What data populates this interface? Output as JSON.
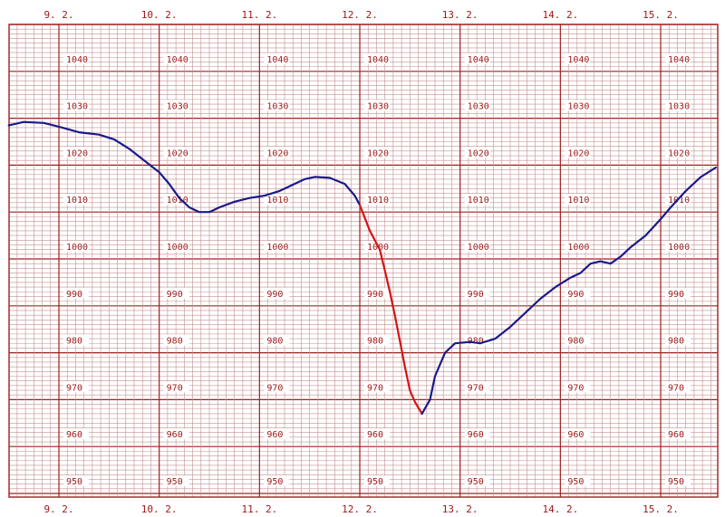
{
  "chart_data": {
    "type": "line",
    "title": "",
    "xlabel": "",
    "ylabel": "",
    "x_unit": "days",
    "x_ticks": [
      "9. 2.",
      "10. 2.",
      "11. 2.",
      "12. 2.",
      "13. 2.",
      "14. 2.",
      "15. 2."
    ],
    "y_tick_labels": [
      "1040",
      "1030",
      "1020",
      "1010",
      "1000",
      "990",
      "980",
      "970",
      "960",
      "950"
    ],
    "xlim": [
      8.5,
      15.55
    ],
    "ylim": [
      946,
      1052
    ],
    "grid": true,
    "colors": {
      "background": "#ffffff",
      "grid_minor": "#c49090",
      "grid_major": "#a02020",
      "label": "#a01818",
      "series_normal": "#1a1a8a",
      "series_drop": "#d41414"
    },
    "series": [
      {
        "color": "#1a1a8a",
        "points": [
          [
            8.5,
            1028.5
          ],
          [
            8.65,
            1029.2
          ],
          [
            8.85,
            1029.0
          ],
          [
            9.0,
            1028.2
          ],
          [
            9.2,
            1027.0
          ],
          [
            9.4,
            1026.5
          ],
          [
            9.55,
            1025.5
          ],
          [
            9.7,
            1023.5
          ],
          [
            9.85,
            1021.0
          ],
          [
            10.0,
            1018.5
          ],
          [
            10.1,
            1016.0
          ],
          [
            10.2,
            1013.0
          ],
          [
            10.3,
            1011.0
          ],
          [
            10.4,
            1010.0
          ],
          [
            10.5,
            1010.0
          ],
          [
            10.6,
            1011.0
          ],
          [
            10.75,
            1012.2
          ],
          [
            10.9,
            1013.0
          ],
          [
            11.05,
            1013.5
          ],
          [
            11.2,
            1014.5
          ],
          [
            11.3,
            1015.5
          ],
          [
            11.45,
            1017.0
          ],
          [
            11.55,
            1017.5
          ],
          [
            11.7,
            1017.3
          ],
          [
            11.85,
            1016.0
          ],
          [
            11.95,
            1013.5
          ],
          [
            12.0,
            1011.5
          ]
        ]
      },
      {
        "color": "#d41414",
        "points": [
          [
            12.0,
            1011.5
          ],
          [
            12.1,
            1006.0
          ],
          [
            12.2,
            1002.0
          ],
          [
            12.25,
            997.5
          ],
          [
            12.3,
            993.0
          ],
          [
            12.35,
            988.0
          ],
          [
            12.4,
            982.5
          ],
          [
            12.45,
            977.0
          ],
          [
            12.5,
            972.0
          ],
          [
            12.55,
            969.5
          ],
          [
            12.62,
            967.0
          ]
        ]
      },
      {
        "color": "#1a1a8a",
        "points": [
          [
            12.62,
            967.0
          ],
          [
            12.7,
            970.0
          ],
          [
            12.75,
            975.0
          ],
          [
            12.85,
            980.0
          ],
          [
            12.95,
            982.0
          ],
          [
            13.1,
            982.3
          ],
          [
            13.2,
            982.0
          ],
          [
            13.35,
            983.0
          ],
          [
            13.5,
            985.5
          ],
          [
            13.65,
            988.5
          ],
          [
            13.8,
            991.5
          ],
          [
            13.95,
            994.0
          ],
          [
            14.1,
            996.0
          ],
          [
            14.2,
            997.0
          ],
          [
            14.3,
            999.0
          ],
          [
            14.4,
            999.5
          ],
          [
            14.5,
            999.0
          ],
          [
            14.6,
            1000.5
          ],
          [
            14.7,
            1002.5
          ],
          [
            14.85,
            1005.0
          ],
          [
            15.0,
            1008.5
          ],
          [
            15.1,
            1011.0
          ],
          [
            15.25,
            1014.5
          ],
          [
            15.4,
            1017.5
          ],
          [
            15.55,
            1019.5
          ]
        ]
      }
    ]
  }
}
